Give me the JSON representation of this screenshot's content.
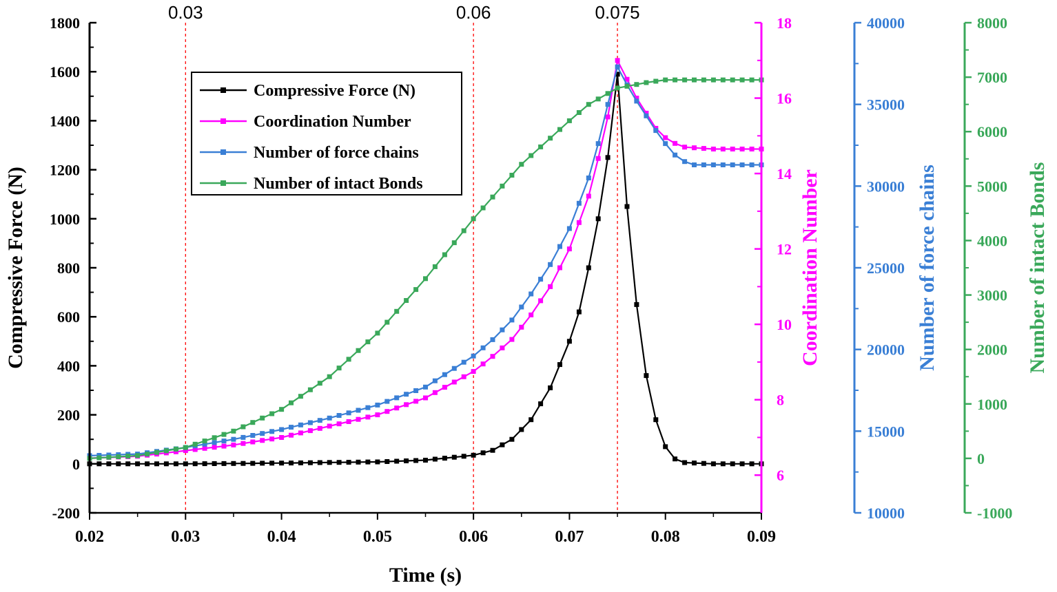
{
  "chart_data": {
    "type": "line",
    "title": "",
    "xlabel": "Time (s)",
    "xlim": [
      0.02,
      0.09
    ],
    "xticks": [
      "0.02",
      "0.03",
      "0.04",
      "0.05",
      "0.06",
      "0.07",
      "0.08",
      "0.09"
    ],
    "xtick_values": [
      0.02,
      0.03,
      0.04,
      0.05,
      0.06,
      0.07,
      0.08,
      0.09
    ],
    "grid": false,
    "legend_position": "top-left",
    "reference_lines": [
      {
        "x": 0.03,
        "label": "0.03",
        "color": "#ff0000"
      },
      {
        "x": 0.06,
        "label": "0.06",
        "color": "#ff0000"
      },
      {
        "x": 0.075,
        "label": "0.075",
        "color": "#ff0000"
      }
    ],
    "axes": [
      {
        "id": "force",
        "side": "left",
        "label": "Compressive Force (N)",
        "color": "#000000",
        "ylim": [
          -200,
          1800
        ],
        "ticks": [
          "-200",
          "0",
          "200",
          "400",
          "600",
          "800",
          "1000",
          "1200",
          "1400",
          "1600",
          "1800"
        ],
        "tick_values": [
          -200,
          0,
          200,
          400,
          600,
          800,
          1000,
          1200,
          1400,
          1600,
          1800
        ]
      },
      {
        "id": "coord",
        "side": "right",
        "label": "Coordination Number",
        "color": "#ff00ff",
        "ylim": [
          5,
          18
        ],
        "ticks": [
          "6",
          "8",
          "10",
          "12",
          "14",
          "16",
          "18"
        ],
        "tick_values": [
          6,
          8,
          10,
          12,
          14,
          16,
          18
        ]
      },
      {
        "id": "chains",
        "side": "right",
        "label": "Number of force chains",
        "color": "#3a7fd5",
        "ylim": [
          10000,
          40000
        ],
        "ticks": [
          "10000",
          "15000",
          "20000",
          "25000",
          "30000",
          "35000",
          "40000"
        ],
        "tick_values": [
          10000,
          15000,
          20000,
          25000,
          30000,
          35000,
          40000
        ]
      },
      {
        "id": "bonds",
        "side": "right",
        "label": "Number of intact Bonds",
        "color": "#3aa85a",
        "ylim": [
          -1000,
          8000
        ],
        "ticks": [
          "-1000",
          "0",
          "1000",
          "2000",
          "3000",
          "4000",
          "5000",
          "6000",
          "7000",
          "8000"
        ],
        "tick_values": [
          -1000,
          0,
          1000,
          2000,
          3000,
          4000,
          5000,
          6000,
          7000,
          8000
        ]
      }
    ],
    "series": [
      {
        "name": "Compressive Force (N)",
        "axis": "force",
        "color": "#000000",
        "x": [
          0.02,
          0.03,
          0.04,
          0.05,
          0.055,
          0.06,
          0.062,
          0.064,
          0.066,
          0.068,
          0.07,
          0.071,
          0.072,
          0.073,
          0.074,
          0.075,
          0.076,
          0.077,
          0.078,
          0.079,
          0.08,
          0.081,
          0.082,
          0.085,
          0.09
        ],
        "y": [
          0,
          0,
          3,
          8,
          15,
          35,
          55,
          100,
          180,
          310,
          500,
          620,
          800,
          1000,
          1250,
          1590,
          1050,
          650,
          360,
          180,
          70,
          20,
          5,
          0,
          0
        ]
      },
      {
        "name": "Coordination Number",
        "axis": "coord",
        "color": "#ff00ff",
        "x": [
          0.02,
          0.025,
          0.03,
          0.035,
          0.04,
          0.045,
          0.05,
          0.055,
          0.06,
          0.062,
          0.064,
          0.066,
          0.068,
          0.07,
          0.072,
          0.073,
          0.074,
          0.075,
          0.076,
          0.077,
          0.078,
          0.079,
          0.08,
          0.081,
          0.082,
          0.085,
          0.09
        ],
        "y": [
          6.45,
          6.5,
          6.65,
          6.8,
          7.0,
          7.3,
          7.6,
          8.05,
          8.75,
          9.15,
          9.6,
          10.25,
          11.0,
          12.0,
          13.4,
          14.4,
          15.5,
          17.0,
          16.5,
          16.0,
          15.6,
          15.2,
          14.95,
          14.8,
          14.7,
          14.65,
          14.65
        ]
      },
      {
        "name": "Number of force chains",
        "axis": "chains",
        "color": "#3a7fd5",
        "x": [
          0.02,
          0.025,
          0.03,
          0.035,
          0.04,
          0.045,
          0.05,
          0.055,
          0.06,
          0.062,
          0.064,
          0.066,
          0.068,
          0.07,
          0.072,
          0.073,
          0.074,
          0.075,
          0.076,
          0.077,
          0.078,
          0.079,
          0.08,
          0.081,
          0.082,
          0.083,
          0.085,
          0.09
        ],
        "y": [
          13500,
          13600,
          14000,
          14500,
          15100,
          15800,
          16600,
          17700,
          19600,
          20600,
          21800,
          23400,
          25200,
          27400,
          30500,
          32600,
          35000,
          37300,
          36200,
          35200,
          34300,
          33400,
          32600,
          31900,
          31500,
          31300,
          31300,
          31300
        ]
      },
      {
        "name": "Number of intact Bonds",
        "axis": "bonds",
        "color": "#3aa85a",
        "x": [
          0.02,
          0.025,
          0.03,
          0.035,
          0.04,
          0.045,
          0.05,
          0.055,
          0.06,
          0.065,
          0.07,
          0.072,
          0.074,
          0.075,
          0.078,
          0.08,
          0.085,
          0.09
        ],
        "y": [
          0,
          50,
          200,
          500,
          900,
          1500,
          2300,
          3300,
          4400,
          5400,
          6200,
          6500,
          6700,
          6800,
          6900,
          6950,
          6950,
          6950
        ]
      }
    ]
  }
}
